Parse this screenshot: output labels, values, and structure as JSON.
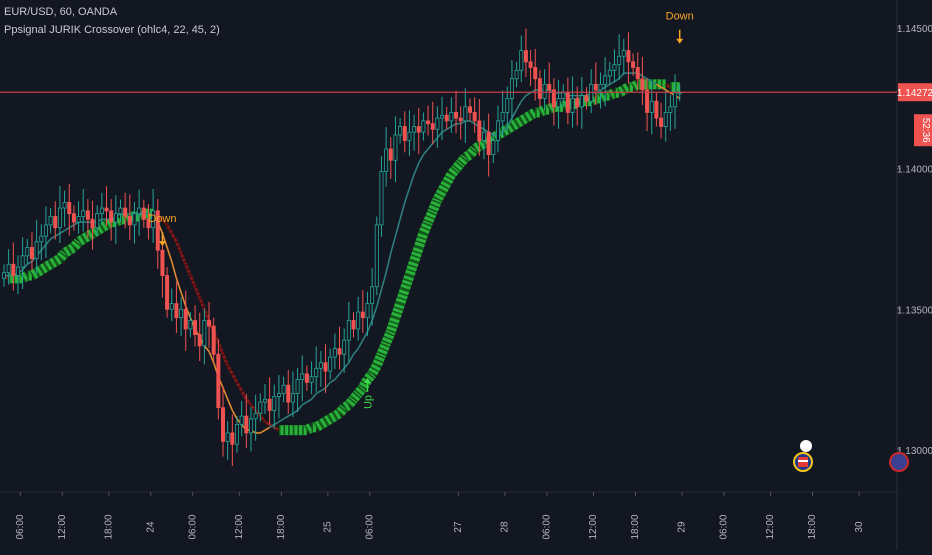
{
  "header": {
    "symbol_line": "EUR/USD, 60, OANDA",
    "indicator_line": "Ppsignal JURIK Crossover (ohlc4, 22, 45, 2)"
  },
  "colors": {
    "background": "#131722",
    "up_candle": "#26a69a",
    "down_candle": "#ef5350",
    "fast_up": "#2e7d7d",
    "fast_down": "#e08a2e",
    "slow_up": "#2ecc40",
    "slow_down": "#8b1a1a",
    "price_line": "#c0404a",
    "signal_down": "#f5a623",
    "signal_up": "#3ddc4a",
    "axis_text": "#b2b5be"
  },
  "icons": [
    "arrow-down-icon",
    "arrow-up-icon",
    "us-flag-event-icon",
    "event-icon"
  ],
  "chart_data": {
    "type": "candlestick",
    "ylim": [
      1.1285,
      1.146
    ],
    "y_ticks": [
      {
        "value": 1.145,
        "label": "1.14500"
      },
      {
        "value": 1.14,
        "label": "1.14000"
      },
      {
        "value": 1.135,
        "label": "1.13500"
      },
      {
        "value": 1.13,
        "label": "1.13000"
      }
    ],
    "x_range": [
      0,
      152
    ],
    "x_ticks": [
      {
        "i": 2,
        "label": "06:00"
      },
      {
        "i": 11,
        "label": "12:00"
      },
      {
        "i": 21,
        "label": "18:00"
      },
      {
        "i": 30,
        "label": "24"
      },
      {
        "i": 39,
        "label": "06:00"
      },
      {
        "i": 49,
        "label": "12:00"
      },
      {
        "i": 58,
        "label": "18:00"
      },
      {
        "i": 68,
        "label": "25"
      },
      {
        "i": 77,
        "label": "06:00"
      },
      {
        "i": 96,
        "label": "27"
      },
      {
        "i": 106,
        "label": "28"
      },
      {
        "i": 115,
        "label": "06:00"
      },
      {
        "i": 125,
        "label": "12:00"
      },
      {
        "i": 134,
        "label": "18:00"
      },
      {
        "i": 144,
        "label": "29"
      },
      {
        "i": 153,
        "label": "06:00"
      },
      {
        "i": 163,
        "label": "12:00"
      },
      {
        "i": 172,
        "label": "18:00"
      },
      {
        "i": 182,
        "label": "30"
      }
    ],
    "price_line": {
      "value": 1.14272,
      "label": "1.14272",
      "countdown": "52:36"
    },
    "close": [
      1.1363,
      1.1366,
      1.1362,
      1.1365,
      1.1369,
      1.1372,
      1.1368,
      1.1374,
      1.1376,
      1.138,
      1.1383,
      1.1379,
      1.1386,
      1.1388,
      1.1384,
      1.1381,
      1.1383,
      1.1385,
      1.1382,
      1.1379,
      1.1384,
      1.1386,
      1.1385,
      1.1381,
      1.1384,
      1.1386,
      1.1383,
      1.138,
      1.1384,
      1.1386,
      1.1382,
      1.1379,
      1.1385,
      1.1371,
      1.1362,
      1.135,
      1.1352,
      1.1347,
      1.135,
      1.1343,
      1.1346,
      1.1341,
      1.1337,
      1.1346,
      1.1344,
      1.1334,
      1.1315,
      1.1303,
      1.1306,
      1.1302,
      1.1309,
      1.1312,
      1.1306,
      1.1311,
      1.1313,
      1.1317,
      1.1318,
      1.1314,
      1.1319,
      1.132,
      1.1323,
      1.1317,
      1.132,
      1.1325,
      1.1327,
      1.1324,
      1.1326,
      1.1329,
      1.1331,
      1.1328,
      1.1333,
      1.1336,
      1.1334,
      1.1339,
      1.1346,
      1.1343,
      1.1349,
      1.1347,
      1.1352,
      1.1358,
      1.138,
      1.1399,
      1.1407,
      1.1403,
      1.1412,
      1.1415,
      1.141,
      1.1413,
      1.1415,
      1.1413,
      1.1417,
      1.1416,
      1.1414,
      1.1418,
      1.1419,
      1.1417,
      1.142,
      1.1418,
      1.1417,
      1.1422,
      1.142,
      1.1417,
      1.141,
      1.1413,
      1.1405,
      1.141,
      1.1417,
      1.142,
      1.1425,
      1.1432,
      1.1435,
      1.1442,
      1.1438,
      1.1436,
      1.1432,
      1.1425,
      1.143,
      1.1428,
      1.1422,
      1.1425,
      1.1427,
      1.142,
      1.1425,
      1.1422,
      1.1426,
      1.1424,
      1.143,
      1.1428,
      1.143,
      1.1433,
      1.1435,
      1.1437,
      1.144,
      1.1442,
      1.1438,
      1.1436,
      1.1432,
      1.1428,
      1.142,
      1.1424,
      1.1418,
      1.1415,
      1.142,
      1.1422,
      1.1427,
      1.1427
    ],
    "fast_line": [
      1.1362,
      1.1362,
      1.1362,
      1.1363,
      1.1364,
      1.1366,
      1.1367,
      1.1369,
      1.1371,
      1.1373,
      1.1375,
      1.1376,
      1.1377,
      1.1378,
      1.1379,
      1.138,
      1.1381,
      1.1381,
      1.1381,
      1.1381,
      1.1381,
      1.1382,
      1.1382,
      1.1382,
      1.1383,
      1.1384,
      1.1384,
      1.1384,
      1.1384,
      1.1384,
      1.1384,
      1.1384,
      1.1383,
      1.1381,
      1.1377,
      1.1372,
      1.1367,
      1.1361,
      1.1356,
      1.1351,
      1.1347,
      1.1343,
      1.134,
      1.1337,
      1.1335,
      1.1331,
      1.1326,
      1.1322,
      1.1318,
      1.1314,
      1.1311,
      1.1309,
      1.1307,
      1.1307,
      1.1306,
      1.1306,
      1.1307,
      1.1308,
      1.1309,
      1.131,
      1.1311,
      1.1312,
      1.1313,
      1.1314,
      1.1316,
      1.1317,
      1.1318,
      1.132,
      1.1321,
      1.1322,
      1.1324,
      1.1325,
      1.1327,
      1.1329,
      1.1331,
      1.1334,
      1.1336,
      1.1339,
      1.1342,
      1.1346,
      1.1351,
      1.1357,
      1.1363,
      1.137,
      1.1376,
      1.1382,
      1.1388,
      1.1393,
      1.1398,
      1.1402,
      1.1405,
      1.1407,
      1.1409,
      1.1411,
      1.1413,
      1.1414,
      1.1415,
      1.1416,
      1.1416,
      1.1417,
      1.1417,
      1.1416,
      1.1415,
      1.1414,
      1.1413,
      1.1412,
      1.1412,
      1.1413,
      1.1415,
      1.1418,
      1.1421,
      1.1424,
      1.1426,
      1.1427,
      1.1428,
      1.1428,
      1.1428,
      1.1428,
      1.1427,
      1.1427,
      1.1427,
      1.1426,
      1.1426,
      1.1426,
      1.1426,
      1.1426,
      1.1427,
      1.1427,
      1.1428,
      1.1429,
      1.143,
      1.1431,
      1.1432,
      1.1434,
      1.1434,
      1.1434,
      1.1434,
      1.1433,
      1.1432,
      1.1431,
      1.143,
      1.1429,
      1.1428,
      1.1427,
      1.1426,
      1.1425
    ],
    "slow_line": [
      1.1362,
      1.1361,
      1.1361,
      1.1361,
      1.1361,
      1.1362,
      1.1362,
      1.1363,
      1.1364,
      1.1365,
      1.1366,
      1.1367,
      1.1368,
      1.137,
      1.1371,
      1.1372,
      1.1374,
      1.1375,
      1.1376,
      1.1377,
      1.1378,
      1.1379,
      1.138,
      1.1381,
      1.1381,
      1.1382,
      1.1382,
      1.1383,
      1.1383,
      1.1383,
      1.1384,
      1.1384,
      1.1384,
      1.1383,
      1.1382,
      1.138,
      1.1377,
      1.1374,
      1.137,
      1.1366,
      1.1362,
      1.1358,
      1.1354,
      1.135,
      1.1346,
      1.1342,
      1.1338,
      1.1334,
      1.133,
      1.1327,
      1.1324,
      1.1321,
      1.1318,
      1.1316,
      1.1314,
      1.1312,
      1.131,
      1.1309,
      1.1308,
      1.1307,
      1.1307,
      1.1307,
      1.1307,
      1.1307,
      1.1307,
      1.1307,
      1.1308,
      1.1308,
      1.1309,
      1.131,
      1.1311,
      1.1312,
      1.1313,
      1.1315,
      1.1316,
      1.1318,
      1.132,
      1.1322,
      1.1325,
      1.1327,
      1.133,
      1.1334,
      1.1338,
      1.1342,
      1.1347,
      1.1352,
      1.1357,
      1.1362,
      1.1367,
      1.1372,
      1.1377,
      1.1381,
      1.1385,
      1.1389,
      1.1392,
      1.1395,
      1.1398,
      1.14,
      1.1402,
      1.1404,
      1.1405,
      1.1407,
      1.1408,
      1.1409,
      1.141,
      1.1411,
      1.1412,
      1.1413,
      1.1414,
      1.1415,
      1.1416,
      1.1417,
      1.1418,
      1.1419,
      1.142,
      1.142,
      1.1421,
      1.1421,
      1.1422,
      1.1422,
      1.1422,
      1.1423,
      1.1423,
      1.1423,
      1.1424,
      1.1424,
      1.1424,
      1.1425,
      1.1425,
      1.1426,
      1.1426,
      1.1427,
      1.1427,
      1.1428,
      1.1429,
      1.1429,
      1.143,
      1.143,
      1.143,
      1.143,
      1.143,
      1.143,
      1.143,
      1.1429,
      1.1429,
      1.1429
    ],
    "signals": [
      {
        "i": 34,
        "type": "down",
        "label": "Down",
        "value": 1.1376
      },
      {
        "i": 78,
        "type": "up",
        "label": "Up",
        "value": 1.1322
      },
      {
        "i": 145,
        "type": "down",
        "label": "Down",
        "value": 1.1448
      }
    ]
  }
}
